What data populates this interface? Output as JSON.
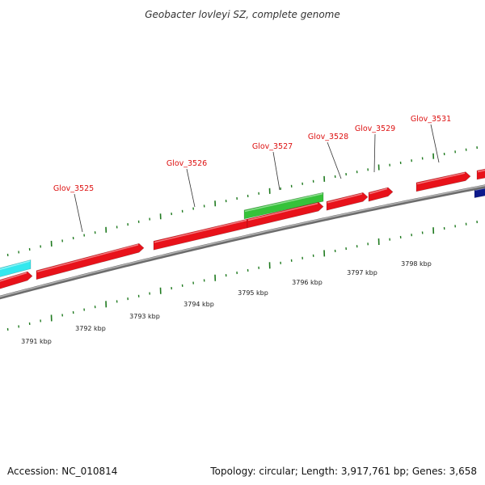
{
  "title": "Geobacter lovleyi SZ, complete genome",
  "footer": {
    "accession": "Accession: NC_010814",
    "summary": "Topology: circular; Length: 3,917,761 bp; Genes: 3,658"
  },
  "colors": {
    "gene_forward": "#e8121a",
    "gene_other": "#36c23a",
    "gene_cyan": "#33e8ee",
    "gene_navy": "#0d1a8c",
    "backbone": "#8a8a8a",
    "tick": "#1f7a1f",
    "label": "#dd1111"
  },
  "gene_labels": [
    "Glov_3525",
    "Glov_3526",
    "Glov_3527",
    "Glov_3528",
    "Glov_3529",
    "Glov_3531"
  ],
  "scale_labels": [
    "3791 kbp",
    "3792 kbp",
    "3793 kbp",
    "3794 kbp",
    "3795 kbp",
    "3796 kbp",
    "3797 kbp",
    "3798 kbp"
  ]
}
